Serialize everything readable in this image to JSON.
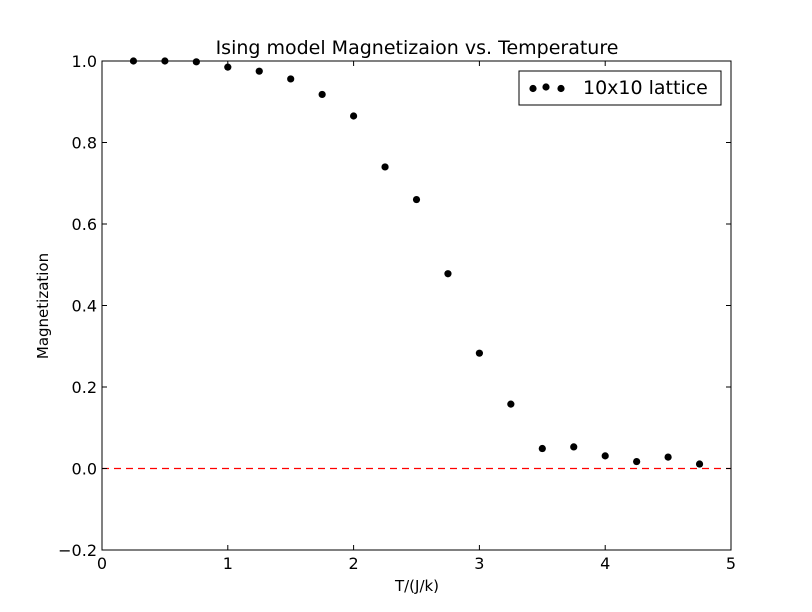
{
  "chart_data": {
    "type": "scatter",
    "title": "Ising model  Magnetizaion vs. Temperature",
    "xlabel": "T/(J/k)",
    "ylabel": "Magnetization",
    "xlim": [
      0,
      5
    ],
    "ylim": [
      -0.2,
      1.0
    ],
    "xticks": [
      0,
      1,
      2,
      3,
      4,
      5
    ],
    "xtick_labels": [
      "0",
      "1",
      "2",
      "3",
      "4",
      "5"
    ],
    "yticks": [
      -0.2,
      0.0,
      0.2,
      0.4,
      0.6,
      0.8,
      1.0
    ],
    "ytick_labels": [
      "−0.2",
      "0.0",
      "0.2",
      "0.4",
      "0.6",
      "0.8",
      "1.0"
    ],
    "grid": false,
    "legend_position": "top-right",
    "series": [
      {
        "name": "10x10 lattice",
        "color": "#000000",
        "marker": "circle",
        "x": [
          0.25,
          0.5,
          0.75,
          1.0,
          1.25,
          1.5,
          1.75,
          2.0,
          2.25,
          2.5,
          2.75,
          3.0,
          3.25,
          3.5,
          3.75,
          4.0,
          4.25,
          4.5,
          4.75
        ],
        "y": [
          1.0,
          1.0,
          0.998,
          0.985,
          0.975,
          0.956,
          0.918,
          0.865,
          0.74,
          0.66,
          0.478,
          0.283,
          0.158,
          0.049,
          0.053,
          0.031,
          0.017,
          0.028,
          0.011
        ]
      }
    ],
    "reference_line": {
      "y": 0.0,
      "color": "#ff0000",
      "style": "dashed"
    }
  }
}
